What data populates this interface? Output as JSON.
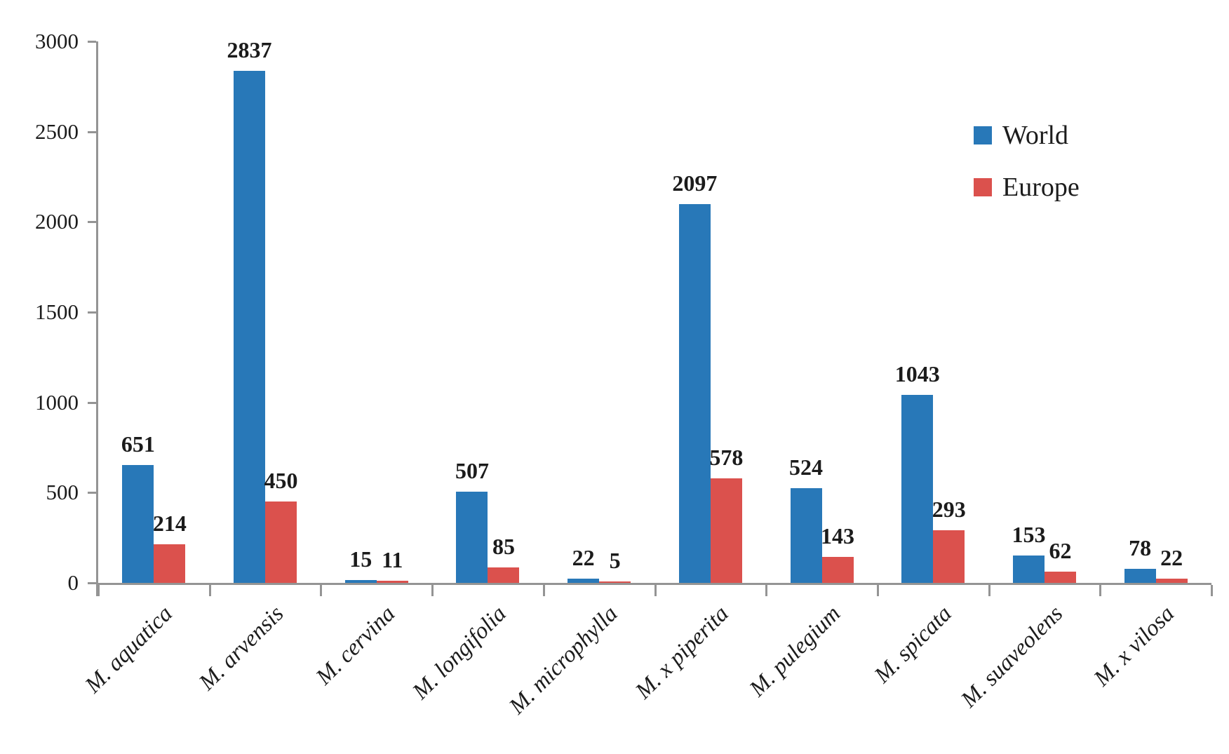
{
  "chart_data": {
    "type": "bar",
    "title": "",
    "xlabel": "",
    "ylabel": "",
    "categories": [
      "M. aquatica",
      "M. arvensis",
      "M. cervina",
      "M. longifolia",
      "M. microphylla",
      "M. x piperita",
      "M. pulegium",
      "M. spicata",
      "M. suaveolens",
      "M. x vilosa"
    ],
    "series": [
      {
        "name": "World",
        "color": "#2878B8",
        "values": [
          651,
          2837,
          15,
          507,
          22,
          2097,
          524,
          1043,
          153,
          78
        ]
      },
      {
        "name": "Europe",
        "color": "#DB514D",
        "values": [
          214,
          450,
          11,
          85,
          5,
          578,
          143,
          293,
          62,
          22
        ]
      }
    ],
    "ylim": [
      0,
      3000
    ],
    "yticks": [
      0,
      500,
      1000,
      1500,
      2000,
      2500,
      3000
    ],
    "grid": false,
    "legend_position": "upper-right",
    "bar_labels_shown": true,
    "axis_color": "#949494",
    "text_color": "#1c1c1c"
  }
}
